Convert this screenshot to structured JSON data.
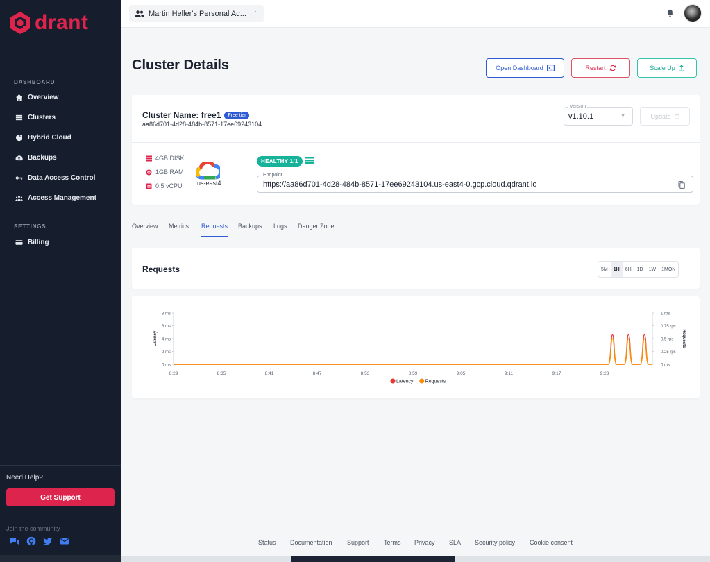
{
  "brand": {
    "name": "drant",
    "color": "#dc244c"
  },
  "account": {
    "label": "Martin Heller's Personal Ac...",
    "icon": "people-icon"
  },
  "sidebar": {
    "dashboard_heading": "DASHBOARD",
    "items": [
      {
        "label": "Overview",
        "icon": "home-icon"
      },
      {
        "label": "Clusters",
        "icon": "list-icon"
      },
      {
        "label": "Hybrid Cloud",
        "icon": "hybrid-cloud-icon"
      },
      {
        "label": "Backups",
        "icon": "cloud-upload-icon"
      },
      {
        "label": "Data Access Control",
        "icon": "key-icon"
      },
      {
        "label": "Access Management",
        "icon": "group-icon"
      }
    ],
    "settings_heading": "SETTINGS",
    "settings_items": [
      {
        "label": "Billing",
        "icon": "card-icon"
      }
    ],
    "need_help": "Need Help?",
    "support_button": "Get Support",
    "join_community": "Join the community"
  },
  "page": {
    "title": "Cluster Details",
    "buttons": {
      "open_dashboard": "Open Dashboard",
      "restart": "Restart",
      "scale_up": "Scale Up"
    }
  },
  "cluster": {
    "name": "Cluster Name: free1",
    "tier_badge": "Free tier",
    "id": "aa86d701-4d28-484b-8571-17ee69243104",
    "version_label": "Version",
    "version": "v1.10.1",
    "update_button": "Update",
    "disk": "4GB DISK",
    "ram": "1GB RAM",
    "cpu": "0.5 vCPU",
    "region": "us-east4",
    "health": "HEALTHY 1/1",
    "endpoint_label": "Endpoint",
    "endpoint": "https://aa86d701-4d28-484b-8571-17ee69243104.us-east4-0.gcp.cloud.qdrant.io"
  },
  "tabs": [
    "Overview",
    "Metrics",
    "Requests",
    "Backups",
    "Logs",
    "Danger Zone"
  ],
  "active_tab": "Requests",
  "requests": {
    "title": "Requests",
    "ranges": [
      "5M",
      "1H",
      "6H",
      "1D",
      "1W",
      "1MON"
    ],
    "selected_range": "1H"
  },
  "chart_data": {
    "type": "line",
    "x": [
      "8:29",
      "8:35",
      "8:41",
      "8:47",
      "8:53",
      "8:59",
      "9:05",
      "9:11",
      "9:17",
      "9:23",
      "9:24",
      "9:25",
      "9:26",
      "9:27",
      "9:28",
      "9:29"
    ],
    "x_ticks": [
      "8:29",
      "8:35",
      "8:41",
      "8:47",
      "8:53",
      "8:59",
      "9:05",
      "9:11",
      "9:17",
      "9:23"
    ],
    "ylabel_left": "Latency",
    "ylabel_right": "Requests",
    "y_left_ticks": [
      "0 ms",
      "2 ms",
      "4 ms",
      "6 ms",
      "8 ms"
    ],
    "y_right_ticks": [
      "0 rps",
      "0.25 rps",
      "0.5 rps",
      "0.75 rps",
      "1 rps"
    ],
    "ylim_left": [
      0,
      8
    ],
    "ylim_right": [
      0,
      1
    ],
    "series": [
      {
        "name": "Latency",
        "axis": "left",
        "color": "#e53935",
        "values": [
          0,
          0,
          0,
          0,
          0,
          0,
          0,
          0,
          0,
          0,
          4.6,
          0,
          4.6,
          0,
          4.6,
          0
        ]
      },
      {
        "name": "Requests",
        "axis": "right",
        "color": "#fb8c00",
        "values": [
          0,
          0,
          0,
          0,
          0,
          0,
          0,
          0,
          0,
          0,
          0.5,
          0,
          0.5,
          0,
          0.5,
          0
        ]
      }
    ],
    "legend": "bottom"
  },
  "footer": [
    "Status",
    "Documentation",
    "Support",
    "Terms",
    "Privacy",
    "SLA",
    "Security policy",
    "Cookie consent"
  ]
}
